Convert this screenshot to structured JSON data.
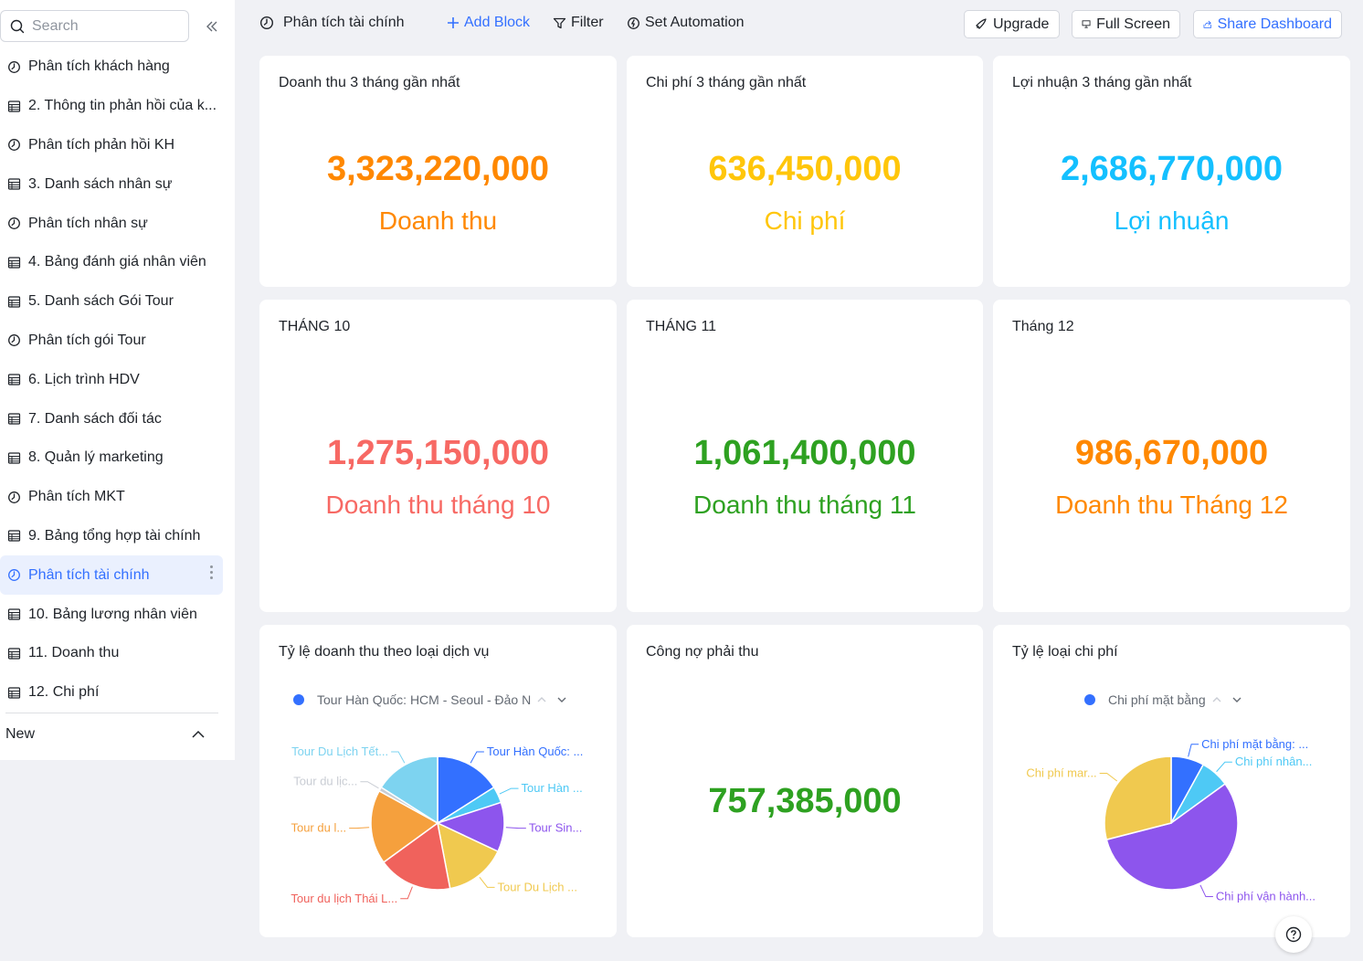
{
  "sidebar": {
    "search_placeholder": "Search",
    "items": [
      {
        "label": "Phân tích khách hàng",
        "icon": "dashboard-icon"
      },
      {
        "label": "2. Thông tin phản hồi của k...",
        "icon": "table-icon"
      },
      {
        "label": "Phân tích phản hồi KH",
        "icon": "dashboard-icon"
      },
      {
        "label": "3. Danh sách nhân sự",
        "icon": "table-icon"
      },
      {
        "label": "Phân tích nhân sự",
        "icon": "dashboard-icon"
      },
      {
        "label": "4. Bảng đánh giá nhân viên",
        "icon": "table-icon"
      },
      {
        "label": "5. Danh sách Gói Tour",
        "icon": "table-icon"
      },
      {
        "label": "Phân tích gói Tour",
        "icon": "dashboard-icon"
      },
      {
        "label": "6. Lịch trình HDV",
        "icon": "table-icon"
      },
      {
        "label": "7. Danh sách đối tác",
        "icon": "table-icon"
      },
      {
        "label": "8. Quản lý marketing",
        "icon": "table-icon"
      },
      {
        "label": "Phân tích MKT",
        "icon": "dashboard-icon"
      },
      {
        "label": "9. Bảng tổng hợp tài chính",
        "icon": "table-icon"
      },
      {
        "label": "Phân tích tài chính",
        "icon": "dashboard-icon",
        "active": true
      },
      {
        "label": "10. Bảng lương nhân viên",
        "icon": "table-icon"
      },
      {
        "label": "11. Doanh thu",
        "icon": "table-icon"
      },
      {
        "label": "12. Chi phí",
        "icon": "table-icon"
      }
    ],
    "new_label": "New"
  },
  "toolbar": {
    "title": "Phân tích tài chính",
    "add_block": "Add Block",
    "filter": "Filter",
    "set_automation": "Set Automation",
    "upgrade": "Upgrade",
    "full_screen": "Full Screen",
    "share_dashboard": "Share Dashboard"
  },
  "colors": {
    "accent": "#3370ff",
    "orange": "#ff8800",
    "yellow": "#ffc60a",
    "blue": "#14c0ff",
    "red": "#f76964",
    "green": "#2ea121"
  },
  "cards": {
    "revenue3m": {
      "title": "Doanh thu 3 tháng gần nhất",
      "value": "3,323,220,000",
      "label": "Doanh thu"
    },
    "cost3m": {
      "title": "Chi phí 3 tháng gần nhất",
      "value": "636,450,000",
      "label": "Chi phí"
    },
    "profit3m": {
      "title": "Lợi nhuận 3 tháng gần nhất",
      "value": "2,686,770,000",
      "label": "Lợi nhuận"
    },
    "oct": {
      "title": "THÁNG 10",
      "value": "1,275,150,000",
      "label": "Doanh thu tháng 10"
    },
    "nov": {
      "title": "THÁNG 11",
      "value": "1,061,400,000",
      "label": "Doanh thu tháng 11"
    },
    "dec": {
      "title": "Tháng 12",
      "value": "986,670,000",
      "label": "Doanh thu Tháng 12"
    },
    "service_pie": {
      "title": "Tỷ lệ doanh thu theo loại dịch vụ",
      "legend": "Tour Hàn Quốc: HCM - Seoul - Đảo N"
    },
    "receivable": {
      "title": "Công nợ phải thu",
      "value": "757,385,000"
    },
    "cost_pie": {
      "title": "Tỷ lệ loại chi phí",
      "legend": "Chi phí mặt bằng"
    }
  },
  "chart_data": [
    {
      "type": "pie",
      "title": "Tỷ lệ doanh thu theo loại dịch vụ",
      "slices": [
        {
          "name": "Tour Hàn Quốc: ...",
          "value": 16,
          "color": "#3370ff"
        },
        {
          "name": "Tour Hàn ...",
          "value": 4,
          "color": "#4ec9f5"
        },
        {
          "name": "Tour Sin...",
          "value": 12,
          "color": "#8d55ed"
        },
        {
          "name": "Tour Du Lịch ...",
          "value": 15,
          "color": "#f0c94f"
        },
        {
          "name": "Tour du lịch Thái L...",
          "value": 18,
          "color": "#f0625c"
        },
        {
          "name": "Tour du l...",
          "value": 18,
          "color": "#f5a03d"
        },
        {
          "name": "Tour du lịc...",
          "value": 1,
          "color": "#c9cdd4"
        },
        {
          "name": "Tour Du Lịch Tết...",
          "value": 16,
          "color": "#7dd3f0"
        }
      ]
    },
    {
      "type": "pie",
      "title": "Tỷ lệ loại chi phí",
      "slices": [
        {
          "name": "Chi phí mặt bằng: ...",
          "value": 8,
          "color": "#3370ff"
        },
        {
          "name": "Chi phí nhân...",
          "value": 7,
          "color": "#4ec9f5"
        },
        {
          "name": "Chi phí vận hành...",
          "value": 56,
          "color": "#8d55ed"
        },
        {
          "name": "Chi phí mar...",
          "value": 29,
          "color": "#f0c94f"
        }
      ]
    }
  ]
}
